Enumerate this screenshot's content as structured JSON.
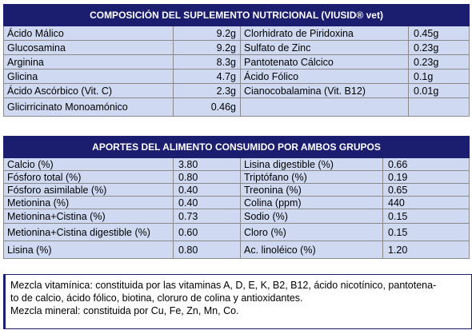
{
  "table1": {
    "title": "COMPOSICIÓN DEL SUPLEMENTO NUTRICIONAL (VIUSID® vet)",
    "rows": [
      [
        "Ácido Málico",
        "9.2g",
        "Clorhidrato de Piridoxina",
        "0.45g"
      ],
      [
        "Glucosamina",
        "9.2g",
        "Sulfato de Zinc",
        "0.23g"
      ],
      [
        "Arginina",
        "8.3g",
        "Pantotenato Cálcico",
        "0.23g"
      ],
      [
        "Glicina",
        "4.7g",
        "Ácido Fólico",
        "0.1g"
      ],
      [
        "Ácido Ascórbico (Vit. C)",
        "2.3g",
        "Cianocobalamina (Vit. B12)",
        "0.01g"
      ],
      [
        "Glicirricinato Monoamónico",
        "0.46g",
        "",
        ""
      ]
    ]
  },
  "table2": {
    "title": "APORTES DEL ALIMENTO CONSUMIDO POR AMBOS GRUPOS",
    "rows": [
      [
        "Calcio (%)",
        "3.80",
        "Lisina digestible (%)",
        "0.66"
      ],
      [
        "Fósforo total (%)",
        "0.80",
        "Triptófano (%)",
        "0.19"
      ],
      [
        "Fósforo asimilable (%)",
        "0.40",
        "Treonina (%)",
        "0.65"
      ],
      [
        "Metionina (%)",
        "0.40",
        "Colina (ppm)",
        "440"
      ],
      [
        "Metionina+Cistina (%)",
        "0.73",
        "Sodio (%)",
        "0.15"
      ],
      [
        "Metionina+Cistina digestible (%)",
        "0.60",
        "Cloro (%)",
        "0.15"
      ],
      [
        "Lisina (%)",
        "0.80",
        "Ac. linoléico (%)",
        "1.20"
      ]
    ]
  },
  "note": {
    "line1": "Mezcla vitamínica: constituida por las vitaminas A, D, E, K, B2, B12, ácido nicotínico, pantotena-",
    "line2": "to de calcio, ácido fólico, biotina, cloruro de colina y antioxidantes.",
    "line3": "Mezcla mineral: constituida por Cu, Fe, Zn, Mn, Co."
  }
}
